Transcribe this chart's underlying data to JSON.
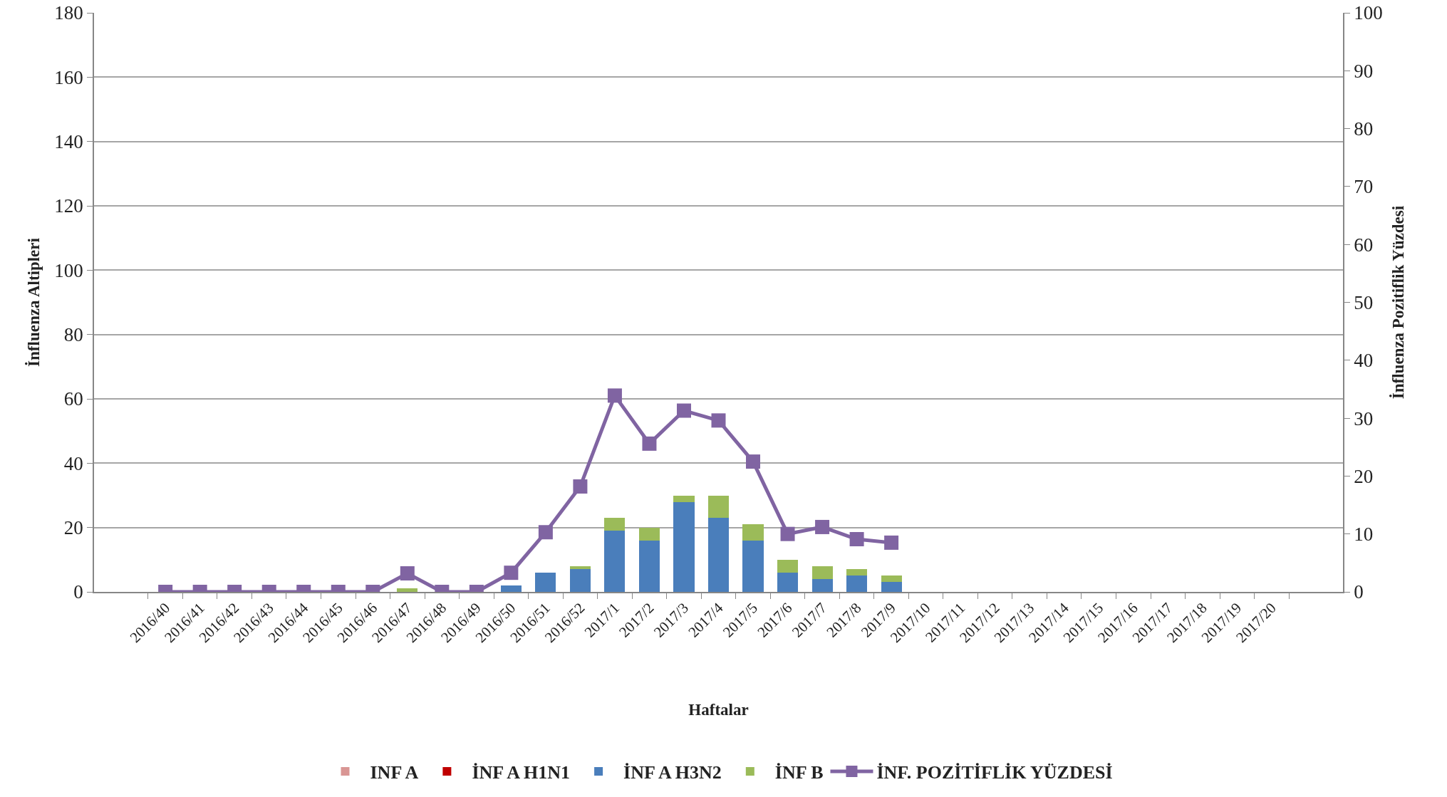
{
  "chart_data": {
    "type": "bar",
    "xlabel": "Haftalar",
    "ylabel": "İnfluenza Altipleri",
    "y2label": "İnfluenza Pozitiflik Yüzdesi",
    "categories": [
      "2016/40",
      "2016/41",
      "2016/42",
      "2016/43",
      "2016/44",
      "2016/45",
      "2016/46",
      "2016/47",
      "2016/48",
      "2016/49",
      "2016/50",
      "2016/51",
      "2016/52",
      "2017/1",
      "2017/2",
      "2017/3",
      "2017/4",
      "2017/5",
      "2017/6",
      "2017/7",
      "2017/8",
      "2017/9",
      "2017/10",
      "2017/11",
      "2017/12",
      "2017/13",
      "2017/14",
      "2017/15",
      "2017/16",
      "2017/17",
      "2017/18",
      "2017/19",
      "2017/20"
    ],
    "series": [
      {
        "name": "INF A",
        "color": "#d99694",
        "values": [
          0,
          0,
          0,
          0,
          0,
          0,
          0,
          0,
          0,
          0,
          0,
          0,
          0,
          0,
          0,
          0,
          0,
          0,
          0,
          0,
          0,
          0,
          null,
          null,
          null,
          null,
          null,
          null,
          null,
          null,
          null,
          null,
          null
        ]
      },
      {
        "name": "İNF A H1N1",
        "color": "#c00000",
        "values": [
          0,
          0,
          0,
          0,
          0,
          0,
          0,
          0,
          0,
          0,
          0,
          0,
          0,
          0,
          0,
          0,
          0,
          0,
          0,
          0,
          0,
          0,
          null,
          null,
          null,
          null,
          null,
          null,
          null,
          null,
          null,
          null,
          null
        ]
      },
      {
        "name": "İNF A H3N2",
        "color": "#4a7ebb",
        "values": [
          0,
          0,
          0,
          0,
          0,
          0,
          0,
          0,
          0,
          0,
          2,
          6,
          7,
          19,
          16,
          28,
          23,
          16,
          6,
          4,
          5,
          3,
          null,
          null,
          null,
          null,
          null,
          null,
          null,
          null,
          null,
          null,
          null
        ]
      },
      {
        "name": "İNF B",
        "color": "#9bbb59",
        "values": [
          0,
          0,
          0,
          0,
          0,
          0,
          0,
          1,
          0,
          0,
          0,
          0,
          1,
          4,
          4,
          2,
          7,
          5,
          4,
          4,
          2,
          2,
          null,
          null,
          null,
          null,
          null,
          null,
          null,
          null,
          null,
          null,
          null
        ]
      },
      {
        "name": "İNF. POZİTİFLİK YÜZDESİ",
        "type": "line",
        "axis": "y2",
        "color": "#8064a2",
        "marker": "square",
        "line_style": "solid",
        "values": [
          0,
          0,
          0,
          0,
          0,
          0,
          0,
          3.2,
          0,
          0,
          3.3,
          10.3,
          18.2,
          33.9,
          25.6,
          31.3,
          29.6,
          22.5,
          10,
          11.2,
          9.1,
          8.5,
          null,
          null,
          null,
          null,
          null,
          null,
          null,
          null,
          null,
          null,
          null
        ]
      }
    ],
    "stacked": true,
    "ylim": [
      0,
      180
    ],
    "yticks": [
      0,
      20,
      40,
      60,
      80,
      100,
      120,
      140,
      160,
      180
    ],
    "y2lim": [
      0,
      100
    ],
    "y2ticks": [
      0,
      10,
      20,
      30,
      40,
      50,
      60,
      70,
      80,
      90,
      100
    ],
    "grid": "y",
    "legend": "bottom"
  }
}
